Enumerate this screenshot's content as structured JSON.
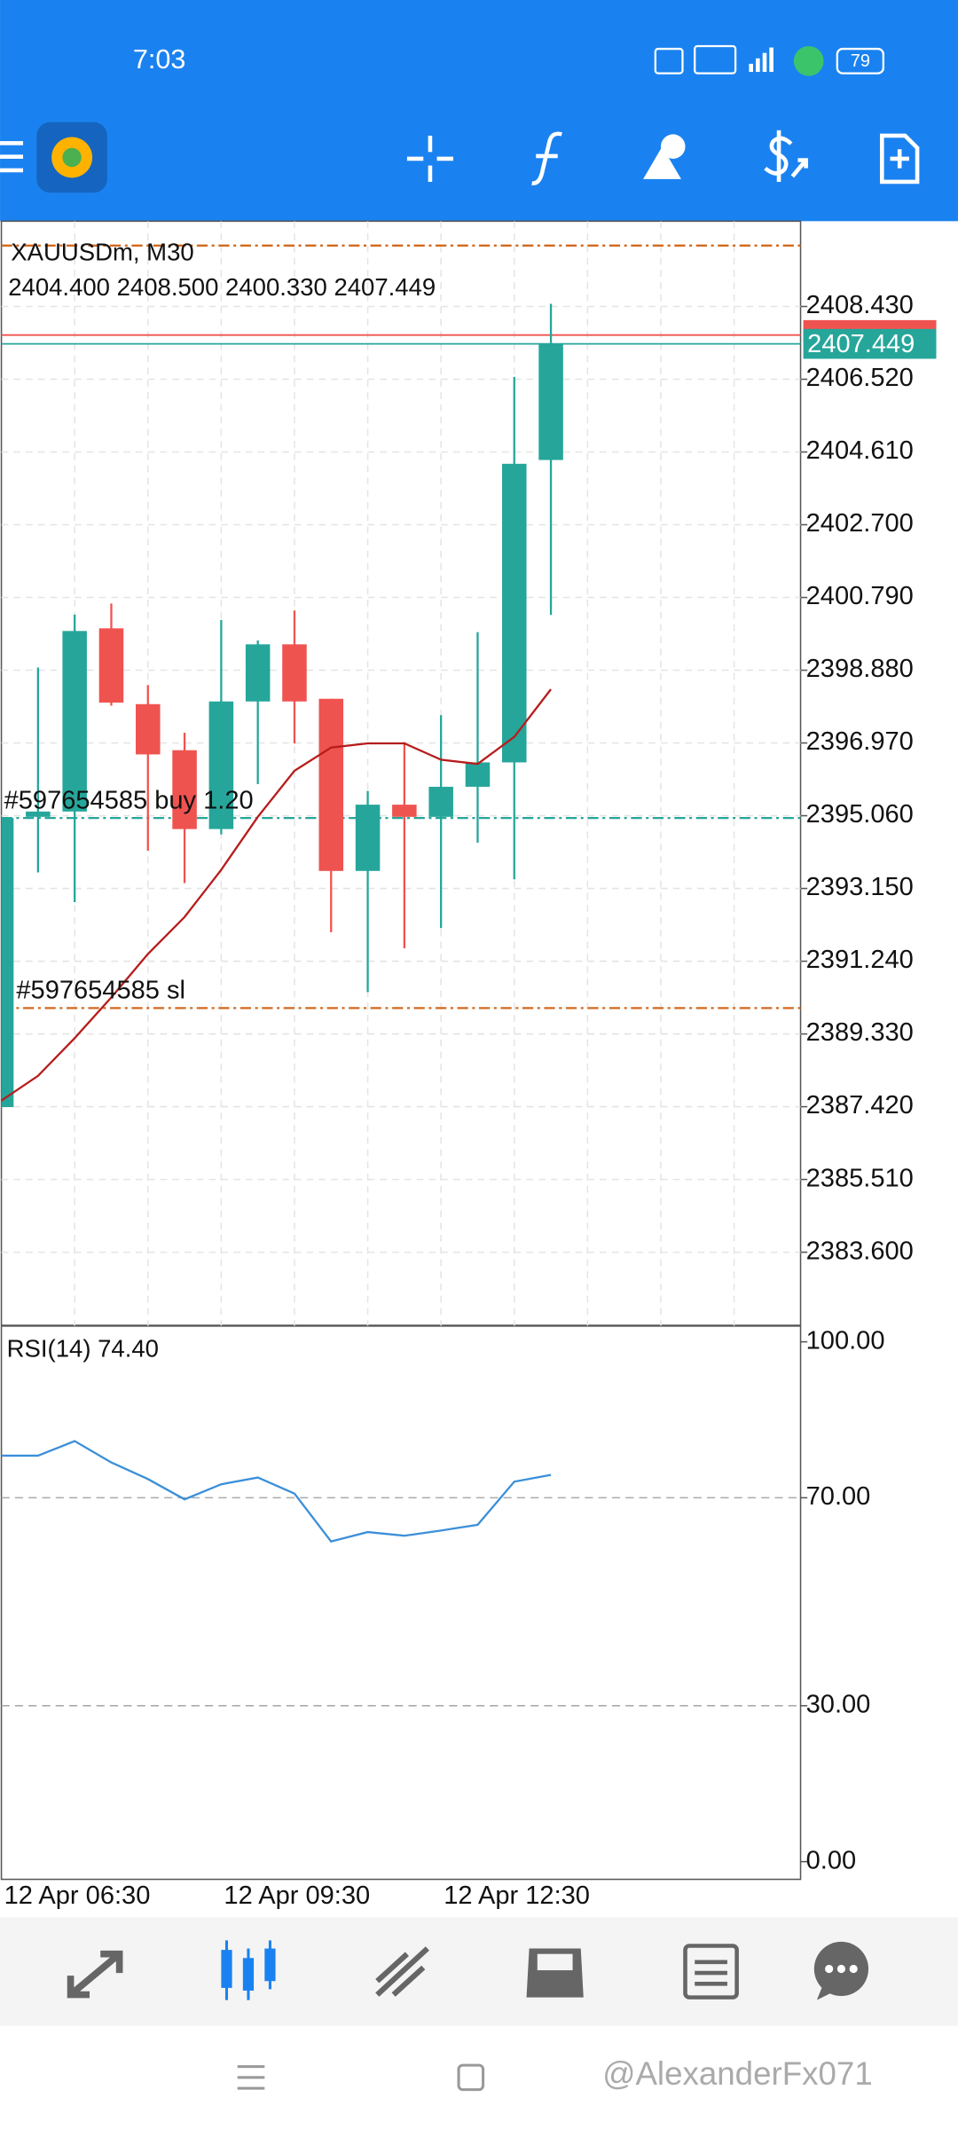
{
  "status_bar": {
    "time": "7:03",
    "battery": "79"
  },
  "watermark": "@AlexanderFx071",
  "chart_data": {
    "type": "candlestick",
    "title": "XAUUSDm, M30",
    "ohlc_text": "2404.400 2408.500 2400.330 2407.449",
    "categories": [
      "12 Apr 06:30",
      null,
      null,
      null,
      null,
      null,
      "12 Apr 09:30",
      null,
      null,
      null,
      null,
      null,
      "12 Apr 12:30",
      null,
      null,
      null
    ],
    "open": [
      2387.41,
      2395.03,
      2395.17,
      2399.98,
      2397.99,
      2396.78,
      2394.71,
      2398.06,
      2399.56,
      2398.13,
      2393.61,
      2395.35,
      2395.03,
      2395.82,
      2396.46,
      2404.4
    ],
    "high": [
      2395.0,
      2398.95,
      2400.34,
      2400.63,
      2398.49,
      2397.24,
      2400.2,
      2399.66,
      2400.45,
      2398.13,
      2395.71,
      2396.99,
      2397.7,
      2399.88,
      2406.58,
      2408.5
    ],
    "low": [
      2387.41,
      2393.57,
      2392.79,
      2397.95,
      2394.14,
      2393.29,
      2394.57,
      2395.89,
      2396.96,
      2392.0,
      2390.43,
      2391.58,
      2392.11,
      2394.35,
      2393.39,
      2400.33
    ],
    "close": [
      2395.0,
      2395.17,
      2399.91,
      2398.03,
      2396.67,
      2394.71,
      2398.06,
      2399.56,
      2398.06,
      2393.61,
      2395.35,
      2395.03,
      2395.82,
      2396.46,
      2404.3,
      2407.449
    ],
    "up_color": "#26a69a",
    "down_color": "#ef5350",
    "ylim": [
      2381.67,
      2410.67
    ],
    "yticks": [
      {
        "value": 2408.43,
        "label": "2408.430"
      },
      {
        "value": 2406.52,
        "label": "2406.520"
      },
      {
        "value": 2404.61,
        "label": "2404.610"
      },
      {
        "value": 2402.7,
        "label": "2402.700"
      },
      {
        "value": 2400.79,
        "label": "2400.790"
      },
      {
        "value": 2398.88,
        "label": "2398.880"
      },
      {
        "value": 2396.97,
        "label": "2396.970"
      },
      {
        "value": 2395.06,
        "label": "2395.060"
      },
      {
        "value": 2393.15,
        "label": "2393.150"
      },
      {
        "value": 2391.24,
        "label": "2391.240"
      },
      {
        "value": 2389.33,
        "label": "2389.330"
      },
      {
        "value": 2387.42,
        "label": "2387.420"
      },
      {
        "value": 2385.51,
        "label": "2385.510"
      },
      {
        "value": 2383.6,
        "label": "2383.600"
      }
    ],
    "grid": true,
    "ma": {
      "color": "#b71c1c",
      "values": [
        2387.58,
        2388.23,
        2389.22,
        2390.29,
        2391.43,
        2392.4,
        2393.64,
        2395.03,
        2396.24,
        2396.85,
        2396.96,
        2396.96,
        2396.53,
        2396.42,
        2397.13,
        2398.38
      ]
    },
    "bid": {
      "value": 2407.449,
      "label": "2407.449",
      "color": "#26a69a"
    },
    "ask": {
      "value": 2407.68,
      "color": "#ef5350"
    },
    "levels": [
      {
        "value": 2410.03,
        "color": "#d2691e"
      },
      {
        "value": 2395.0,
        "label": "#597654585 buy 1.20",
        "color": "#26a69a"
      },
      {
        "value": 2390.01,
        "label": "#597654585 sl",
        "color": "#d2691e"
      }
    ],
    "rsi": {
      "title": "RSI(14) 74.40",
      "color": "#3b8fd9",
      "values": [
        78.1,
        78.1,
        80.9,
        76.8,
        73.6,
        69.7,
        72.6,
        73.9,
        70.8,
        61.6,
        63.4,
        62.7,
        63.7,
        64.8,
        73.1,
        74.4
      ],
      "ylim": [
        -3.4,
        103.1
      ],
      "yticks": [
        {
          "value": 100,
          "label": "100.00"
        },
        {
          "value": 70,
          "label": "70.00"
        },
        {
          "value": 30,
          "label": "30.00"
        },
        {
          "value": 0,
          "label": "0.00"
        }
      ],
      "levels": [
        70,
        30
      ]
    }
  }
}
